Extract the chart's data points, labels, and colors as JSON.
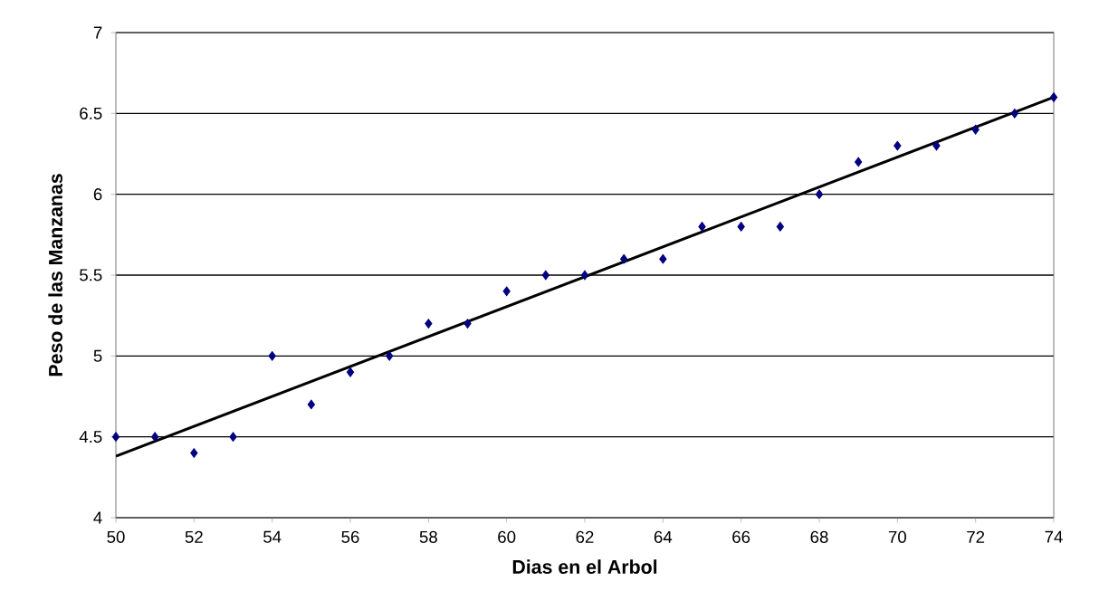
{
  "chart_data": {
    "type": "scatter",
    "xlabel": "Dias en el Arbol",
    "ylabel": "Peso de las Manzanas",
    "xlim": [
      50,
      74
    ],
    "xticks": [
      50,
      52,
      54,
      56,
      58,
      60,
      62,
      64,
      66,
      68,
      70,
      72,
      74
    ],
    "ylim": [
      4,
      7
    ],
    "yticks": [
      4,
      4.5,
      5,
      5.5,
      6,
      6.5,
      7
    ],
    "grid": "y",
    "series": [
      {
        "marker": "diamond",
        "color": "#000080",
        "x": [
          50,
          51,
          52,
          53,
          54,
          55,
          56,
          57,
          58,
          59,
          60,
          61,
          62,
          63,
          64,
          65,
          66,
          67,
          68,
          69,
          70,
          71,
          72,
          73,
          74
        ],
        "values": [
          4.5,
          4.5,
          4.4,
          4.5,
          5.0,
          4.7,
          4.9,
          5.0,
          5.2,
          5.2,
          5.4,
          5.5,
          5.5,
          5.6,
          5.6,
          5.8,
          5.8,
          5.8,
          6.0,
          6.2,
          6.3,
          6.3,
          6.4,
          6.5,
          6.6
        ]
      },
      {
        "type": "line",
        "marker": "none",
        "color": "#000000",
        "x": [
          50,
          74
        ],
        "values": [
          4.38,
          6.6
        ]
      }
    ]
  }
}
